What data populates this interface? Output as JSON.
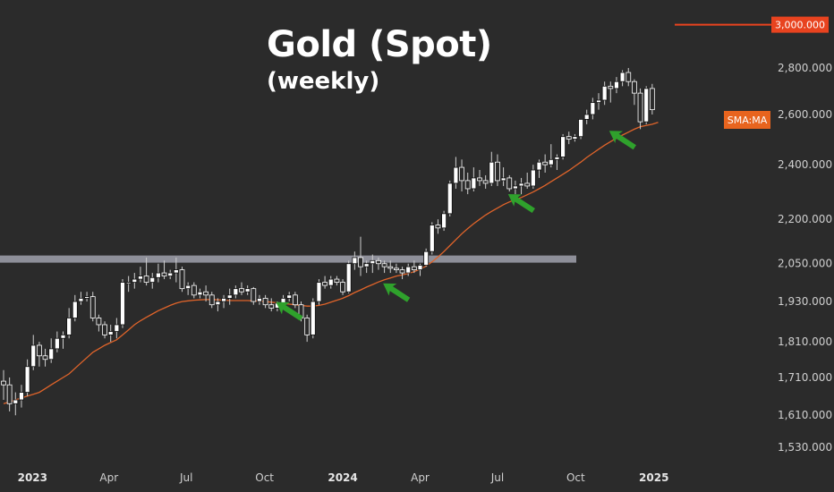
{
  "header": {
    "title": "Gold (Spot)",
    "subtitle": "(weekly)"
  },
  "colors": {
    "background": "#2b2b2b",
    "candle_body": "#ffffff",
    "candle_outline": "#111111",
    "wick": "#cfcfcf",
    "sma_line": "#e0642a",
    "resistance_band": "#8e8f99",
    "target_line": "#e8431f",
    "target_label_bg": "#e8431f",
    "sma_label_bg": "#e8641e",
    "arrow": "#2fa12c"
  },
  "chart_data": {
    "type": "candlestick",
    "title": "Gold (Spot)",
    "subtitle": "(weekly)",
    "scale": "log",
    "x_start": "2022-11-28",
    "interval": "weekly",
    "ohlc": [
      [
        1700,
        1730,
        1650,
        1690
      ],
      [
        1690,
        1710,
        1620,
        1640
      ],
      [
        1640,
        1670,
        1610,
        1650
      ],
      [
        1650,
        1690,
        1630,
        1670
      ],
      [
        1670,
        1760,
        1660,
        1740
      ],
      [
        1740,
        1830,
        1730,
        1800
      ],
      [
        1800,
        1810,
        1740,
        1770
      ],
      [
        1770,
        1790,
        1740,
        1760
      ],
      [
        1760,
        1820,
        1750,
        1790
      ],
      [
        1790,
        1840,
        1780,
        1820
      ],
      [
        1820,
        1840,
        1790,
        1830
      ],
      [
        1830,
        1910,
        1820,
        1880
      ],
      [
        1880,
        1950,
        1870,
        1930
      ],
      [
        1930,
        1960,
        1920,
        1940
      ],
      [
        1940,
        1960,
        1930,
        1945
      ],
      [
        1945,
        1960,
        1870,
        1880
      ],
      [
        1880,
        1890,
        1840,
        1860
      ],
      [
        1860,
        1870,
        1820,
        1830
      ],
      [
        1830,
        1860,
        1810,
        1840
      ],
      [
        1840,
        1880,
        1820,
        1860
      ],
      [
        1860,
        2000,
        1850,
        1990
      ],
      [
        1990,
        2010,
        1960,
        1990
      ],
      [
        1990,
        2020,
        1970,
        2000
      ],
      [
        2000,
        2040,
        1990,
        2010
      ],
      [
        2010,
        2070,
        1980,
        1990
      ],
      [
        1990,
        2020,
        1970,
        2005
      ],
      [
        2005,
        2050,
        1990,
        2020
      ],
      [
        2020,
        2060,
        2000,
        2010
      ],
      [
        2010,
        2030,
        2000,
        2020
      ],
      [
        2020,
        2070,
        1990,
        2030
      ],
      [
        2030,
        2040,
        1960,
        1970
      ],
      [
        1970,
        1990,
        1950,
        1980
      ],
      [
        1980,
        1990,
        1940,
        1950
      ],
      [
        1950,
        1970,
        1940,
        1960
      ],
      [
        1960,
        1980,
        1930,
        1950
      ],
      [
        1950,
        1960,
        1910,
        1920
      ],
      [
        1920,
        1940,
        1900,
        1930
      ],
      [
        1930,
        1950,
        1910,
        1940
      ],
      [
        1940,
        1970,
        1920,
        1950
      ],
      [
        1950,
        1980,
        1940,
        1970
      ],
      [
        1970,
        1990,
        1950,
        1960
      ],
      [
        1960,
        1980,
        1950,
        1970
      ],
      [
        1970,
        1975,
        1920,
        1930
      ],
      [
        1930,
        1950,
        1920,
        1940
      ],
      [
        1940,
        1950,
        1910,
        1920
      ],
      [
        1920,
        1940,
        1900,
        1910
      ],
      [
        1910,
        1930,
        1900,
        1925
      ],
      [
        1925,
        1950,
        1910,
        1940
      ],
      [
        1940,
        1960,
        1930,
        1950
      ],
      [
        1950,
        1960,
        1910,
        1920
      ],
      [
        1920,
        1930,
        1870,
        1880
      ],
      [
        1880,
        1890,
        1810,
        1830
      ],
      [
        1830,
        1940,
        1820,
        1930
      ],
      [
        1930,
        2000,
        1920,
        1990
      ],
      [
        1990,
        2010,
        1970,
        1980
      ],
      [
        1980,
        2010,
        1970,
        2000
      ],
      [
        2000,
        2010,
        1980,
        1990
      ],
      [
        1990,
        2000,
        1950,
        1960
      ],
      [
        1960,
        2060,
        1955,
        2050
      ],
      [
        2050,
        2090,
        2030,
        2070
      ],
      [
        2070,
        2140,
        2010,
        2040
      ],
      [
        2040,
        2060,
        2020,
        2050
      ],
      [
        2050,
        2080,
        2020,
        2060
      ],
      [
        2060,
        2070,
        2030,
        2050
      ],
      [
        2050,
        2060,
        2020,
        2040
      ],
      [
        2040,
        2060,
        2020,
        2035
      ],
      [
        2035,
        2050,
        2020,
        2030
      ],
      [
        2030,
        2040,
        2000,
        2020
      ],
      [
        2020,
        2050,
        2010,
        2040
      ],
      [
        2040,
        2060,
        2020,
        2030
      ],
      [
        2030,
        2050,
        2010,
        2045
      ],
      [
        2045,
        2100,
        2040,
        2090
      ],
      [
        2090,
        2190,
        2080,
        2180
      ],
      [
        2180,
        2200,
        2150,
        2170
      ],
      [
        2170,
        2230,
        2160,
        2220
      ],
      [
        2220,
        2340,
        2210,
        2330
      ],
      [
        2330,
        2430,
        2310,
        2390
      ],
      [
        2390,
        2420,
        2300,
        2340
      ],
      [
        2340,
        2370,
        2290,
        2310
      ],
      [
        2310,
        2390,
        2300,
        2350
      ],
      [
        2350,
        2380,
        2320,
        2340
      ],
      [
        2340,
        2360,
        2310,
        2330
      ],
      [
        2330,
        2450,
        2320,
        2410
      ],
      [
        2410,
        2440,
        2320,
        2340
      ],
      [
        2340,
        2390,
        2320,
        2350
      ],
      [
        2350,
        2360,
        2300,
        2310
      ],
      [
        2310,
        2340,
        2290,
        2320
      ],
      [
        2320,
        2350,
        2290,
        2330
      ],
      [
        2330,
        2370,
        2310,
        2320
      ],
      [
        2320,
        2400,
        2310,
        2380
      ],
      [
        2380,
        2420,
        2350,
        2410
      ],
      [
        2410,
        2440,
        2370,
        2400
      ],
      [
        2400,
        2480,
        2390,
        2420
      ],
      [
        2420,
        2440,
        2380,
        2430
      ],
      [
        2430,
        2520,
        2420,
        2510
      ],
      [
        2510,
        2530,
        2480,
        2500
      ],
      [
        2500,
        2520,
        2490,
        2510
      ],
      [
        2510,
        2570,
        2500,
        2580
      ],
      [
        2580,
        2620,
        2560,
        2600
      ],
      [
        2600,
        2670,
        2580,
        2650
      ],
      [
        2650,
        2690,
        2620,
        2660
      ],
      [
        2660,
        2740,
        2640,
        2720
      ],
      [
        2720,
        2740,
        2650,
        2710
      ],
      [
        2710,
        2760,
        2690,
        2740
      ],
      [
        2740,
        2790,
        2720,
        2780
      ],
      [
        2780,
        2800,
        2720,
        2740
      ],
      [
        2740,
        2750,
        2640,
        2690
      ],
      [
        2690,
        2710,
        2540,
        2570
      ],
      [
        2570,
        2720,
        2560,
        2710
      ],
      [
        2710,
        2730,
        2600,
        2620
      ]
    ],
    "sma": [
      1640,
      1645,
      1650,
      1655,
      1660,
      1665,
      1670,
      1680,
      1690,
      1700,
      1710,
      1720,
      1735,
      1750,
      1765,
      1780,
      1790,
      1800,
      1808,
      1816,
      1830,
      1845,
      1860,
      1872,
      1882,
      1892,
      1902,
      1910,
      1918,
      1925,
      1930,
      1932,
      1934,
      1935,
      1936,
      1936,
      1935,
      1934,
      1933,
      1933,
      1933,
      1933,
      1932,
      1931,
      1930,
      1928,
      1926,
      1924,
      1922,
      1920,
      1918,
      1916,
      1916,
      1918,
      1922,
      1928,
      1934,
      1940,
      1948,
      1958,
      1966,
      1975,
      1983,
      1991,
      1998,
      2004,
      2010,
      2014,
      2018,
      2024,
      2032,
      2042,
      2056,
      2072,
      2090,
      2110,
      2130,
      2150,
      2168,
      2185,
      2200,
      2215,
      2228,
      2240,
      2252,
      2262,
      2270,
      2278,
      2288,
      2298,
      2310,
      2322,
      2336,
      2350,
      2364,
      2378,
      2394,
      2410,
      2428,
      2444,
      2460,
      2476,
      2490,
      2504,
      2516,
      2528,
      2540,
      2550,
      2555,
      2560,
      2568
    ],
    "y_ticks": [
      "3,000.000",
      "2,800.000",
      "2,600.000",
      "2,400.000",
      "2,200.000",
      "2,050.000",
      "1,930.000",
      "1,810.000",
      "1,710.000",
      "1,610.000",
      "1,530.000"
    ],
    "y_tick_values": [
      3000,
      2800,
      2600,
      2400,
      2200,
      2050,
      1930,
      1810,
      1710,
      1610,
      1530
    ],
    "x_ticks": [
      {
        "label": "2023",
        "date": "2023-01-01",
        "bold": true
      },
      {
        "label": "Apr",
        "date": "2023-04-01",
        "bold": false
      },
      {
        "label": "Jul",
        "date": "2023-07-01",
        "bold": false
      },
      {
        "label": "Oct",
        "date": "2023-10-01",
        "bold": false
      },
      {
        "label": "2024",
        "date": "2024-01-01",
        "bold": true
      },
      {
        "label": "Apr",
        "date": "2024-04-01",
        "bold": false
      },
      {
        "label": "Jul",
        "date": "2024-07-01",
        "bold": false
      },
      {
        "label": "Oct",
        "date": "2024-10-01",
        "bold": false
      },
      {
        "label": "2025",
        "date": "2025-01-01",
        "bold": true
      }
    ],
    "resistance_level": 2065,
    "target_level": 3000,
    "target_label": "3,000.000",
    "sma_label": "SMA:MA",
    "arrows": [
      {
        "date": "2023-10-06",
        "value": 1945
      },
      {
        "date": "2024-02-09",
        "value": 2004
      },
      {
        "date": "2024-07-05",
        "value": 2310
      },
      {
        "date": "2024-11-01",
        "value": 2555
      }
    ]
  }
}
